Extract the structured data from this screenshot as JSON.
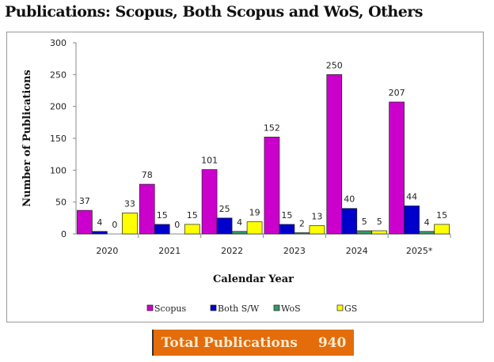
{
  "title": "Publications: Scopus, Both Scopus and WoS, Others",
  "total": {
    "label": "Total Publications",
    "value": "940"
  },
  "chart_data": {
    "type": "bar",
    "title": "Publications: Scopus, Both Scopus and WoS, Others",
    "xlabel": "Calendar Year",
    "ylabel": "Number of Publications",
    "ylim": [
      0,
      300
    ],
    "yticks": [
      0,
      50,
      100,
      150,
      200,
      250,
      300
    ],
    "categories": [
      "2020",
      "2021",
      "2022",
      "2023",
      "2024",
      "2025*"
    ],
    "legend_position": "bottom",
    "grid": false,
    "series": [
      {
        "name": "Scopus",
        "color": "#CC00CC",
        "values": [
          37,
          78,
          101,
          152,
          250,
          207
        ]
      },
      {
        "name": "Both S/W",
        "color": "#0000CC",
        "values": [
          4,
          15,
          25,
          15,
          40,
          44
        ]
      },
      {
        "name": "WoS",
        "color": "#339966",
        "values": [
          0,
          0,
          4,
          2,
          5,
          4
        ]
      },
      {
        "name": "GS",
        "color": "#FFFF00",
        "values": [
          33,
          15,
          19,
          13,
          5,
          15
        ]
      }
    ]
  }
}
